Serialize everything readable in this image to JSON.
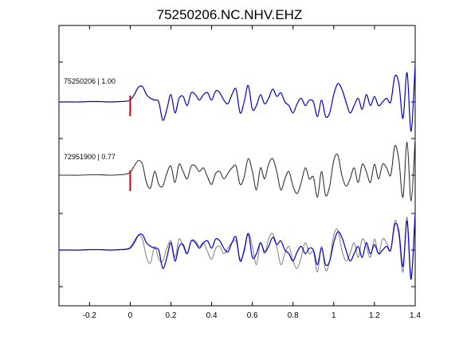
{
  "chart_data": {
    "type": "line",
    "title": "75250206.NC.NHV.EHZ",
    "xlabel": "",
    "ylabel": "",
    "xlim": [
      -0.35,
      1.4
    ],
    "xticks": [
      -0.2,
      0,
      0.2,
      0.4,
      0.6,
      0.8,
      1,
      1.2,
      1.4
    ],
    "xtick_labels": [
      "-0.2",
      "0",
      "0.2",
      "0.4",
      "0.6",
      "0.8",
      "1",
      "1.2",
      "1.4"
    ],
    "grid": false,
    "traces": [
      {
        "label": "75250206 | 1.00",
        "event_id": "75250206",
        "correlation": 1.0,
        "color": "#0000cc",
        "offset": 0
      },
      {
        "label": "72951900 | 0.77",
        "event_id": "72951900",
        "correlation": 0.77,
        "color": "#333333",
        "offset": 1
      },
      {
        "label": "",
        "overlay": true,
        "colors": [
          "#888888",
          "#0000cc"
        ],
        "offset": 2
      }
    ],
    "pick_time": 0,
    "pick_color": "#dd0000",
    "series": [
      {
        "color": "#0000cc",
        "x": [
          -0.35,
          -0.3,
          -0.25,
          -0.2,
          -0.15,
          -0.1,
          -0.05,
          -0.02,
          0.0,
          0.02,
          0.04,
          0.06,
          0.08,
          0.1,
          0.12,
          0.14,
          0.16,
          0.18,
          0.2,
          0.22,
          0.24,
          0.26,
          0.28,
          0.3,
          0.32,
          0.34,
          0.36,
          0.38,
          0.4,
          0.42,
          0.44,
          0.46,
          0.48,
          0.5,
          0.52,
          0.54,
          0.56,
          0.58,
          0.6,
          0.62,
          0.64,
          0.66,
          0.68,
          0.7,
          0.72,
          0.74,
          0.76,
          0.78,
          0.8,
          0.82,
          0.84,
          0.86,
          0.88,
          0.9,
          0.92,
          0.94,
          0.96,
          0.98,
          1.0,
          1.02,
          1.04,
          1.06,
          1.08,
          1.1,
          1.12,
          1.14,
          1.16,
          1.18,
          1.2,
          1.22,
          1.24,
          1.26,
          1.28,
          1.3,
          1.32,
          1.34,
          1.36,
          1.38,
          1.4
        ],
        "y": [
          0.0,
          0.0,
          0.0,
          0.01,
          0.01,
          0.0,
          0.01,
          0.02,
          0.05,
          0.2,
          0.4,
          0.42,
          0.2,
          0.1,
          0.05,
          0.0,
          -0.5,
          -0.2,
          0.2,
          -0.3,
          0.1,
          0.15,
          -0.1,
          0.25,
          0.2,
          0.05,
          0.2,
          0.25,
          0.05,
          0.3,
          0.25,
          0.05,
          -0.05,
          0.2,
          0.35,
          -0.3,
          0.0,
          0.45,
          -0.2,
          -0.1,
          0.2,
          -0.05,
          0.1,
          0.35,
          0.15,
          0.25,
          0.0,
          -0.1,
          -0.3,
          -0.05,
          0.1,
          -0.1,
          0.05,
          0.0,
          -0.4,
          0.05,
          -0.4,
          -0.3,
          0.2,
          0.5,
          0.35,
          0.0,
          -0.3,
          -0.1,
          0.1,
          -0.2,
          0.2,
          -0.1,
          0.15,
          -0.1,
          0.0,
          0.1,
          0.0,
          0.7,
          0.5,
          -0.45,
          0.8,
          -0.8,
          1.0
        ]
      },
      {
        "color": "#333333",
        "x": [
          -0.35,
          -0.3,
          -0.25,
          -0.2,
          -0.15,
          -0.1,
          -0.05,
          -0.02,
          0.0,
          0.02,
          0.04,
          0.06,
          0.08,
          0.1,
          0.12,
          0.14,
          0.16,
          0.18,
          0.2,
          0.22,
          0.24,
          0.26,
          0.28,
          0.3,
          0.32,
          0.34,
          0.36,
          0.38,
          0.4,
          0.42,
          0.44,
          0.46,
          0.48,
          0.5,
          0.52,
          0.54,
          0.56,
          0.58,
          0.6,
          0.62,
          0.64,
          0.66,
          0.68,
          0.7,
          0.72,
          0.74,
          0.76,
          0.78,
          0.8,
          0.82,
          0.84,
          0.86,
          0.88,
          0.9,
          0.92,
          0.94,
          0.96,
          0.98,
          1.0,
          1.02,
          1.04,
          1.06,
          1.08,
          1.1,
          1.12,
          1.14,
          1.16,
          1.18,
          1.2,
          1.22,
          1.24,
          1.26,
          1.28,
          1.3,
          1.32,
          1.34,
          1.36,
          1.38,
          1.4
        ],
        "y": [
          0.0,
          0.0,
          0.0,
          0.01,
          0.01,
          0.0,
          0.01,
          0.03,
          0.08,
          0.25,
          0.4,
          0.3,
          -0.2,
          -0.35,
          0.1,
          -0.25,
          -0.3,
          0.05,
          0.25,
          -0.2,
          0.3,
          0.1,
          -0.1,
          0.25,
          0.25,
          0.1,
          0.2,
          -0.05,
          -0.25,
          0.05,
          0.1,
          -0.1,
          0.05,
          0.2,
          0.25,
          -0.25,
          -0.05,
          0.45,
          0.1,
          -0.4,
          0.2,
          -0.1,
          0.3,
          0.45,
          0.1,
          -0.4,
          -0.1,
          0.1,
          -0.3,
          -0.5,
          -0.2,
          0.2,
          -0.1,
          -0.05,
          -0.6,
          0.1,
          -0.55,
          -0.3,
          0.4,
          0.55,
          0.0,
          -0.3,
          -0.1,
          0.2,
          -0.2,
          0.3,
          0.1,
          -0.2,
          0.3,
          -0.1,
          0.3,
          0.2,
          0.0,
          0.8,
          0.4,
          -0.6,
          0.9,
          -0.7,
          1.0
        ]
      }
    ]
  }
}
